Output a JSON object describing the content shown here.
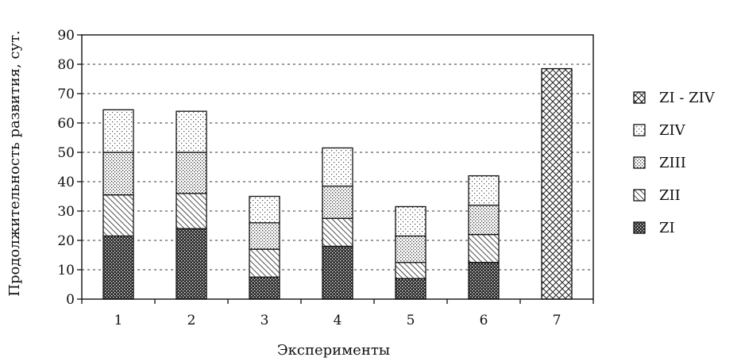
{
  "chart_data": {
    "type": "bar",
    "stacked": true,
    "xlabel": "Эксперименты",
    "ylabel": "Продолжительность развития, сут.",
    "ylim": [
      0,
      90
    ],
    "yticks": [
      0,
      10,
      20,
      30,
      40,
      50,
      60,
      70,
      80,
      90
    ],
    "categories": [
      "1",
      "2",
      "3",
      "4",
      "5",
      "6",
      "7"
    ],
    "grid": "dashed horizontal",
    "legend_position": "right",
    "series": [
      {
        "name": "ZI",
        "pattern": "dense-dots",
        "values": [
          21.5,
          24,
          7.5,
          18,
          7,
          12.5,
          0
        ]
      },
      {
        "name": "ZII",
        "pattern": "diagonal",
        "values": [
          14,
          12,
          9.5,
          9.5,
          5.5,
          9.5,
          0
        ]
      },
      {
        "name": "ZIII",
        "pattern": "medium-dots",
        "values": [
          14.5,
          14,
          9,
          11,
          9,
          10,
          0
        ]
      },
      {
        "name": "ZIV",
        "pattern": "sparse-dots",
        "values": [
          14.5,
          14,
          9,
          13,
          10,
          10,
          0
        ]
      },
      {
        "name": "ZI - ZIV",
        "pattern": "crosshatch",
        "values": [
          0,
          0,
          0,
          0,
          0,
          0,
          78.5
        ]
      }
    ],
    "legend_order": [
      "ZI - ZIV",
      "ZIV",
      "ZIII",
      "ZII",
      "ZI"
    ]
  }
}
